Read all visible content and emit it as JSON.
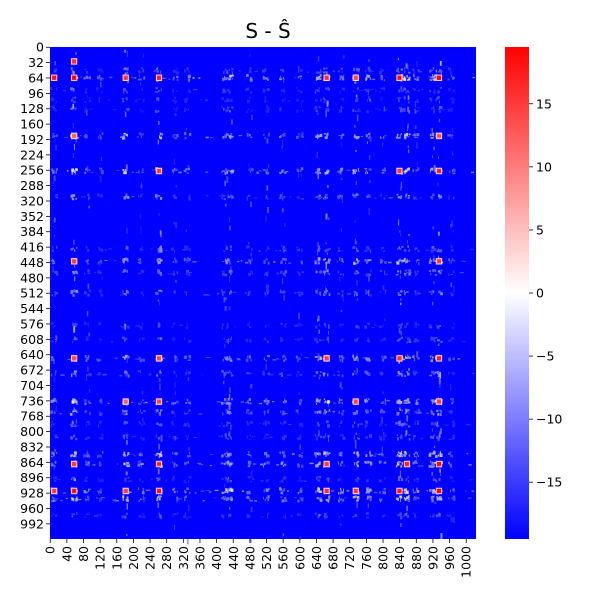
{
  "chart_data": {
    "type": "heatmap",
    "title": "S - Ŝ",
    "xlabel": "",
    "ylabel": "",
    "matrix_size": 1024,
    "x_ticks": [
      0,
      40,
      80,
      120,
      160,
      200,
      240,
      280,
      320,
      360,
      400,
      440,
      480,
      520,
      560,
      600,
      640,
      680,
      720,
      760,
      800,
      840,
      880,
      920,
      960,
      1000
    ],
    "y_ticks": [
      0,
      32,
      64,
      96,
      128,
      160,
      192,
      224,
      256,
      288,
      320,
      352,
      384,
      416,
      448,
      480,
      512,
      544,
      576,
      608,
      640,
      672,
      704,
      736,
      768,
      800,
      832,
      864,
      896,
      928,
      960,
      992
    ],
    "colorbar": {
      "min": -19.5,
      "max": 19.5,
      "ticks": [
        15,
        10,
        5,
        0,
        -5,
        -10,
        -15
      ],
      "colormap": "bwr",
      "colors": [
        "#0000ff",
        "#ffffff",
        "#ff0000"
      ]
    },
    "background_value": -19.5,
    "row_bands": [
      {
        "index": 64,
        "strength": 1.0
      },
      {
        "index": 49,
        "strength": 0.45
      },
      {
        "index": 90,
        "strength": 0.35
      },
      {
        "index": 110,
        "strength": 0.3
      },
      {
        "index": 130,
        "strength": 0.3
      },
      {
        "index": 185,
        "strength": 0.8
      },
      {
        "index": 258,
        "strength": 0.85
      },
      {
        "index": 312,
        "strength": 0.55
      },
      {
        "index": 420,
        "strength": 0.45
      },
      {
        "index": 446,
        "strength": 0.8
      },
      {
        "index": 470,
        "strength": 0.5
      },
      {
        "index": 512,
        "strength": 0.5
      },
      {
        "index": 580,
        "strength": 0.3
      },
      {
        "index": 610,
        "strength": 0.35
      },
      {
        "index": 648,
        "strength": 0.8
      },
      {
        "index": 680,
        "strength": 0.5
      },
      {
        "index": 738,
        "strength": 0.9
      },
      {
        "index": 760,
        "strength": 0.6
      },
      {
        "index": 785,
        "strength": 0.4
      },
      {
        "index": 812,
        "strength": 0.4
      },
      {
        "index": 848,
        "strength": 0.85
      },
      {
        "index": 868,
        "strength": 0.9
      },
      {
        "index": 900,
        "strength": 0.35
      },
      {
        "index": 924,
        "strength": 1.0
      },
      {
        "index": 940,
        "strength": 0.85
      },
      {
        "index": 975,
        "strength": 0.35
      }
    ],
    "col_bands": [
      {
        "index": 10,
        "strength": 0.5
      },
      {
        "index": 58,
        "strength": 1.0
      },
      {
        "index": 90,
        "strength": 0.45
      },
      {
        "index": 120,
        "strength": 0.35
      },
      {
        "index": 182,
        "strength": 0.85
      },
      {
        "index": 220,
        "strength": 0.4
      },
      {
        "index": 262,
        "strength": 0.9
      },
      {
        "index": 300,
        "strength": 0.4
      },
      {
        "index": 330,
        "strength": 0.45
      },
      {
        "index": 420,
        "strength": 0.55
      },
      {
        "index": 432,
        "strength": 0.7
      },
      {
        "index": 480,
        "strength": 0.45
      },
      {
        "index": 520,
        "strength": 0.5
      },
      {
        "index": 560,
        "strength": 0.55
      },
      {
        "index": 600,
        "strength": 0.4
      },
      {
        "index": 645,
        "strength": 0.75
      },
      {
        "index": 665,
        "strength": 0.85
      },
      {
        "index": 700,
        "strength": 0.5
      },
      {
        "index": 735,
        "strength": 0.8
      },
      {
        "index": 765,
        "strength": 0.6
      },
      {
        "index": 800,
        "strength": 0.45
      },
      {
        "index": 840,
        "strength": 0.9
      },
      {
        "index": 858,
        "strength": 0.85
      },
      {
        "index": 880,
        "strength": 0.5
      },
      {
        "index": 920,
        "strength": 0.7
      },
      {
        "index": 935,
        "strength": 1.0
      },
      {
        "index": 965,
        "strength": 0.4
      }
    ],
    "hotspots": [
      {
        "row": 64,
        "col": 58,
        "value": 19.5
      },
      {
        "row": 64,
        "col": 10,
        "value": 18
      },
      {
        "row": 64,
        "col": 182,
        "value": 16
      },
      {
        "row": 64,
        "col": 262,
        "value": 17
      },
      {
        "row": 64,
        "col": 665,
        "value": 16
      },
      {
        "row": 64,
        "col": 735,
        "value": 14
      },
      {
        "row": 64,
        "col": 840,
        "value": 18
      },
      {
        "row": 64,
        "col": 935,
        "value": 19.5
      },
      {
        "row": 258,
        "col": 262,
        "value": 15
      },
      {
        "row": 258,
        "col": 840,
        "value": 15
      },
      {
        "row": 258,
        "col": 935,
        "value": 17
      },
      {
        "row": 446,
        "col": 58,
        "value": 15
      },
      {
        "row": 446,
        "col": 935,
        "value": 15
      },
      {
        "row": 648,
        "col": 58,
        "value": 14
      },
      {
        "row": 648,
        "col": 262,
        "value": 14
      },
      {
        "row": 648,
        "col": 665,
        "value": 15
      },
      {
        "row": 648,
        "col": 840,
        "value": 16
      },
      {
        "row": 648,
        "col": 935,
        "value": 17
      },
      {
        "row": 738,
        "col": 182,
        "value": 12
      },
      {
        "row": 738,
        "col": 262,
        "value": 14
      },
      {
        "row": 738,
        "col": 735,
        "value": 14
      },
      {
        "row": 738,
        "col": 935,
        "value": 15
      },
      {
        "row": 868,
        "col": 58,
        "value": 15
      },
      {
        "row": 868,
        "col": 262,
        "value": 16
      },
      {
        "row": 868,
        "col": 665,
        "value": 15
      },
      {
        "row": 868,
        "col": 858,
        "value": 17
      },
      {
        "row": 868,
        "col": 935,
        "value": 19
      },
      {
        "row": 924,
        "col": 10,
        "value": 15
      },
      {
        "row": 924,
        "col": 58,
        "value": 18
      },
      {
        "row": 924,
        "col": 182,
        "value": 15
      },
      {
        "row": 924,
        "col": 262,
        "value": 18
      },
      {
        "row": 924,
        "col": 665,
        "value": 16
      },
      {
        "row": 924,
        "col": 735,
        "value": 15
      },
      {
        "row": 924,
        "col": 840,
        "value": 18
      },
      {
        "row": 924,
        "col": 935,
        "value": 19.5
      },
      {
        "row": 185,
        "col": 58,
        "value": 12
      },
      {
        "row": 185,
        "col": 935,
        "value": 13
      },
      {
        "row": 30,
        "col": 58,
        "value": 16
      }
    ]
  }
}
